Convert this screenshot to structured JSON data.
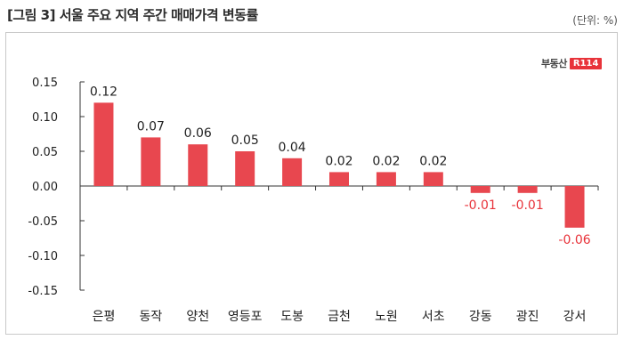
{
  "header": {
    "title": "[그림 3] 서울 주요 지역 주간 매매가격 변동률",
    "unit": "(단위: %)"
  },
  "logo": {
    "text": "부동산",
    "badge": "R114"
  },
  "colors": {
    "bar": "#e8474f",
    "positive_label": "#222222",
    "negative_label": "#e8333a"
  },
  "chart_data": {
    "type": "bar",
    "categories": [
      "은평",
      "동작",
      "양천",
      "영등포",
      "도봉",
      "금천",
      "노원",
      "서초",
      "강동",
      "광진",
      "강서"
    ],
    "values": [
      0.12,
      0.07,
      0.06,
      0.05,
      0.04,
      0.02,
      0.02,
      0.02,
      -0.01,
      -0.01,
      -0.06
    ],
    "value_labels": [
      "0.12",
      "0.07",
      "0.06",
      "0.05",
      "0.04",
      "0.02",
      "0.02",
      "0.02",
      "-0.01",
      "-0.01",
      "-0.06"
    ],
    "yticks": [
      0.15,
      0.1,
      0.05,
      0.0,
      -0.05,
      -0.1,
      -0.15
    ],
    "ytick_labels": [
      "0.15",
      "0.10",
      "0.05",
      "0.00",
      "-0.05",
      "-0.10",
      "-0.15"
    ],
    "ylim": [
      -0.15,
      0.15
    ],
    "title": "",
    "xlabel": "",
    "ylabel": "",
    "grid": false
  }
}
